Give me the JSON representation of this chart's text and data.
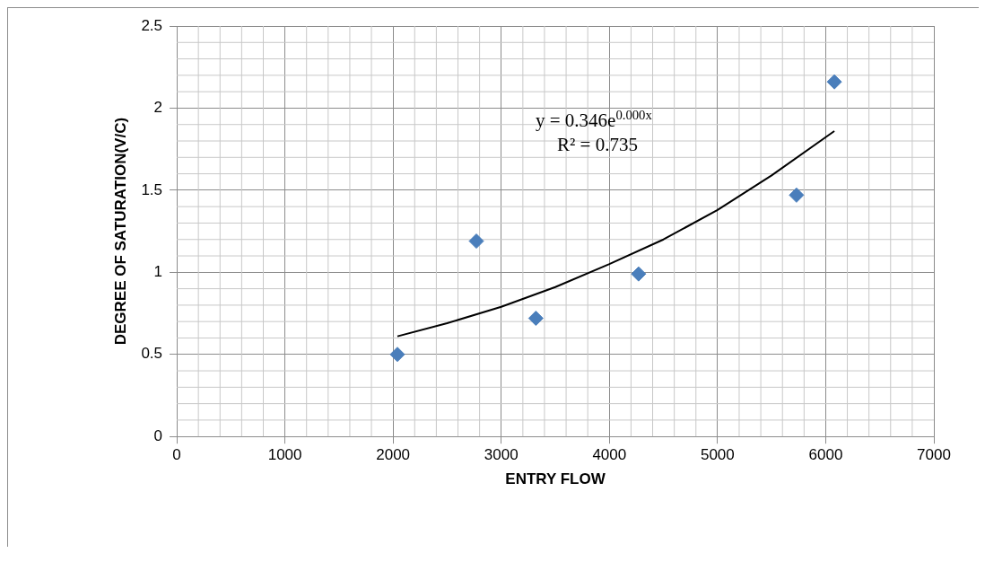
{
  "chart_data": {
    "type": "scatter",
    "xlabel": "ENTRY FLOW",
    "ylabel": "DEGREE OF SATURATION(V/C)",
    "xlim": [
      0,
      7000
    ],
    "xticks": [
      0,
      1000,
      2000,
      3000,
      4000,
      5000,
      6000,
      7000
    ],
    "ylim": [
      0,
      2.5
    ],
    "yticks": [
      0,
      0.5,
      1,
      1.5,
      2,
      2.5
    ],
    "grid": true,
    "marker": "diamond",
    "series": [
      {
        "color": "#4a7ebb",
        "x": [
          2040,
          2770,
          3320,
          4270,
          5730,
          6080
        ],
        "values": [
          0.5,
          1.19,
          0.72,
          0.99,
          1.47,
          2.16
        ]
      },
      {
        "type": "line",
        "marker": "none",
        "color": "#000000",
        "x": [
          2040,
          2500,
          3000,
          3500,
          4000,
          4500,
          5000,
          5500,
          6080
        ],
        "values": [
          0.61,
          0.69,
          0.79,
          0.91,
          1.05,
          1.2,
          1.38,
          1.59,
          1.86
        ]
      }
    ],
    "annotations": [
      "y = 0.346e$^{0.000x}$",
      "R² = 0.735"
    ]
  }
}
